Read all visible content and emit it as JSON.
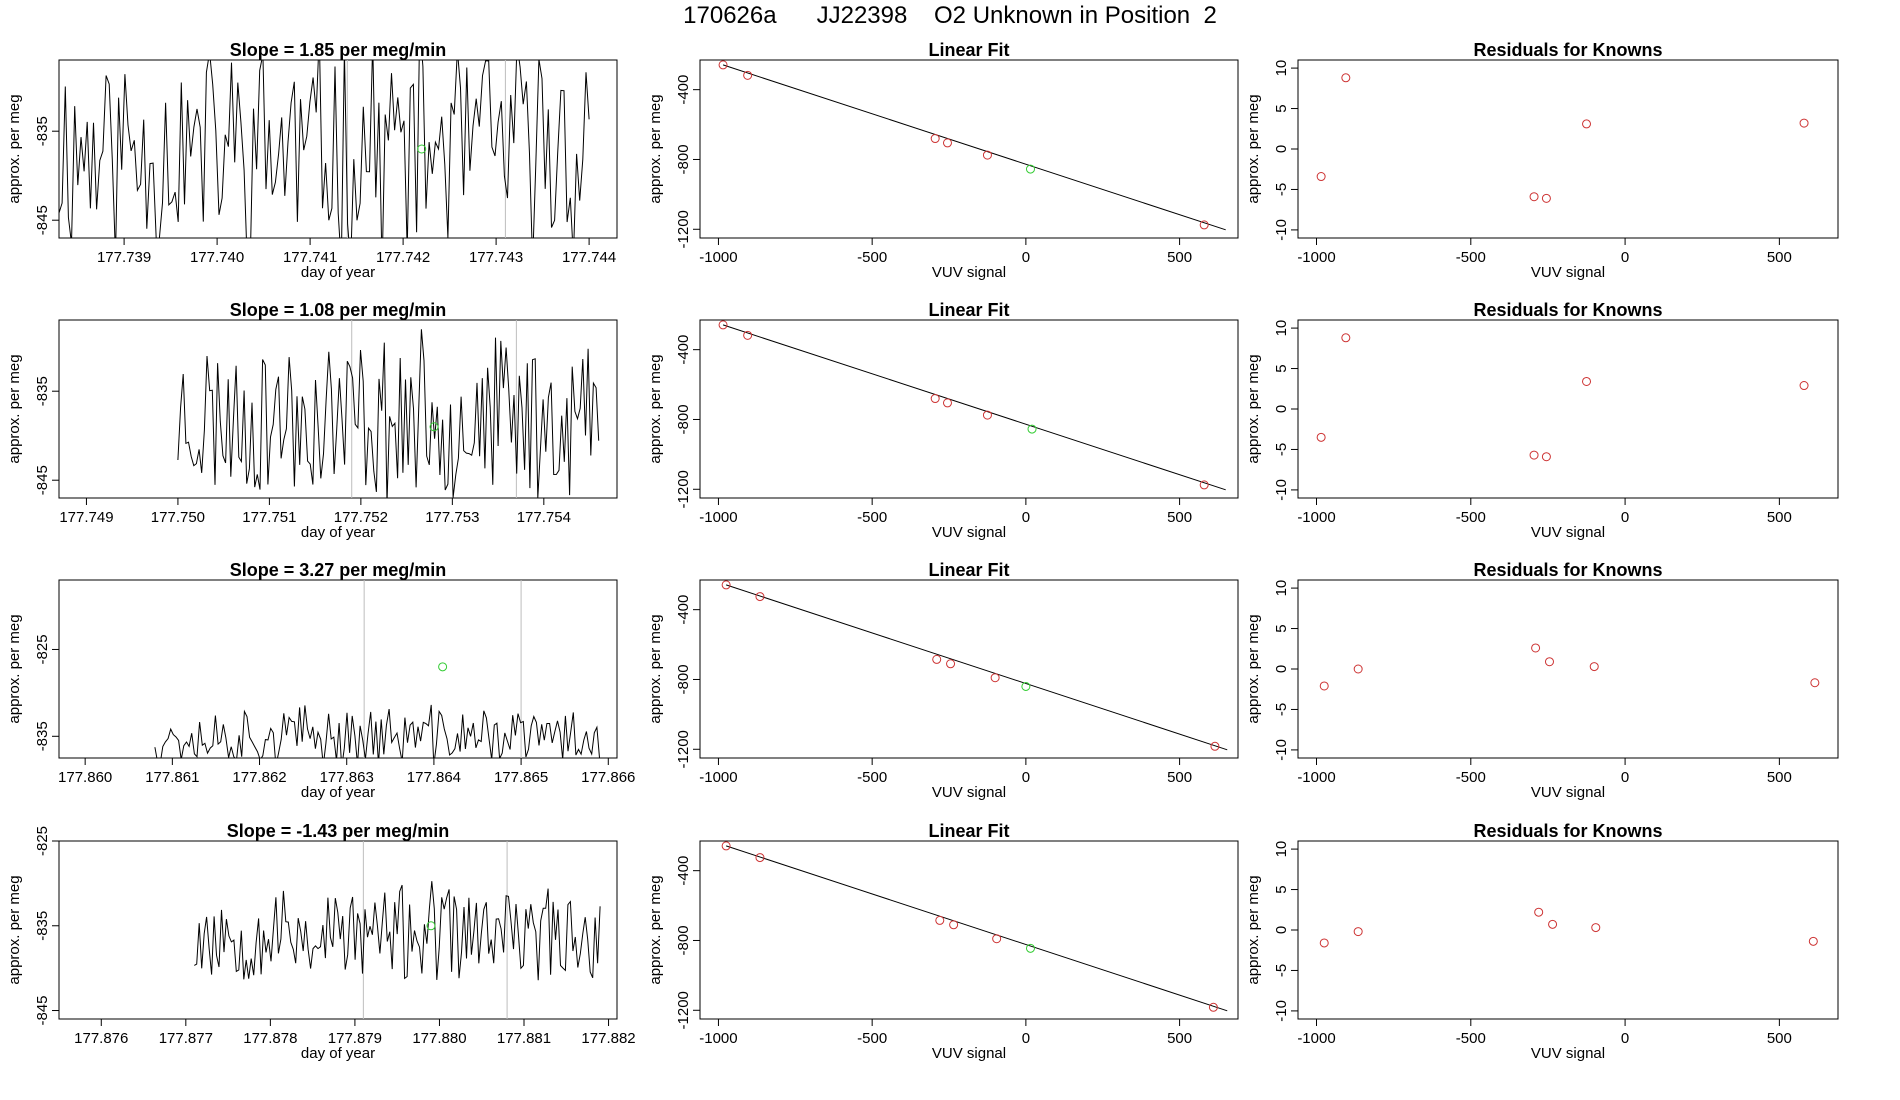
{
  "header": {
    "title": "170626a      JJ22398    O2 Unknown in Position  2"
  },
  "colors": {
    "trace": "#000000",
    "known_points": "#cd3333",
    "unknown_point": "#33cc33",
    "interval_lines": "#bebebe",
    "frame": "#000000"
  },
  "chart_data": [
    {
      "type": "line",
      "row": 0,
      "panel": "timeseries",
      "title": "Slope =  1.85  per meg/min",
      "xlabel": "day of year",
      "ylabel": "approx. per meg",
      "xlim": [
        177.7383,
        177.7443
      ],
      "ylim": [
        -847,
        -827
      ],
      "xticks": [
        177.739,
        177.74,
        177.741,
        177.742,
        177.743,
        177.744
      ],
      "xtick_labels": [
        "177.739",
        "177.740",
        "177.741",
        "177.742",
        "177.743",
        "177.744"
      ],
      "yticks": [
        -835,
        -845
      ],
      "ytick_labels": [
        "-835",
        "-845"
      ],
      "vlines": [
        177.7414,
        177.7431
      ],
      "unknown_point": {
        "x": 177.7422,
        "y": -837
      },
      "x_start": 177.7383,
      "x_end": 177.744,
      "n_points": 170,
      "trace_mean": -837,
      "trace_amplitude": 11,
      "seed": 11
    },
    {
      "type": "scatter",
      "row": 0,
      "panel": "linear_fit",
      "title": "Linear Fit",
      "xlabel": "VUV signal",
      "ylabel": "approx. per meg",
      "xlim": [
        -1060,
        690
      ],
      "ylim": [
        -1250,
        -230
      ],
      "xticks": [
        -1000,
        -500,
        0,
        500
      ],
      "xtick_labels": [
        "-1000",
        "-500",
        "0",
        "500"
      ],
      "yticks": [
        -400,
        -800,
        -1200
      ],
      "ytick_labels": [
        "-400",
        "-800",
        "-1200"
      ],
      "fit_line": {
        "x": [
          -985,
          650
        ],
        "y": [
          -258,
          -1203
        ]
      },
      "knowns": {
        "x": [
          -985,
          -905,
          -295,
          -255,
          -125,
          580
        ],
        "y": [
          -258,
          -318,
          -680,
          -705,
          -775,
          -1175
        ]
      },
      "unknown": {
        "x": 15,
        "y": -855
      }
    },
    {
      "type": "scatter",
      "row": 0,
      "panel": "residuals",
      "title": "Residuals for Knowns",
      "xlabel": "VUV signal",
      "ylabel": "approx. per meg",
      "xlim": [
        -1060,
        690
      ],
      "ylim": [
        -11,
        11
      ],
      "xticks": [
        -1000,
        -500,
        0,
        500
      ],
      "xtick_labels": [
        "-1000",
        "-500",
        "0",
        "500"
      ],
      "yticks": [
        10,
        5,
        0,
        -5,
        -10
      ],
      "ytick_labels": [
        "10",
        "5",
        "0",
        "-5",
        "-10"
      ],
      "points": {
        "x": [
          -985,
          -905,
          -295,
          -255,
          -125,
          580
        ],
        "y": [
          -3.4,
          8.8,
          -5.9,
          -6.1,
          3.1,
          3.2
        ]
      }
    },
    {
      "type": "line",
      "row": 1,
      "panel": "timeseries",
      "title": "Slope =  1.08  per meg/min",
      "xlabel": "day of year",
      "ylabel": "approx. per meg",
      "xlim": [
        177.7487,
        177.7548
      ],
      "ylim": [
        -847,
        -827
      ],
      "xticks": [
        177.749,
        177.75,
        177.751,
        177.752,
        177.753,
        177.754
      ],
      "xtick_labels": [
        "177.749",
        "177.750",
        "177.751",
        "177.752",
        "177.753",
        "177.754"
      ],
      "yticks": [
        -835,
        -845
      ],
      "ytick_labels": [
        "-835",
        "-845"
      ],
      "vlines": [
        177.7519,
        177.7537
      ],
      "unknown_point": {
        "x": 177.7528,
        "y": -839
      },
      "x_start": 177.75,
      "x_end": 177.7546,
      "n_points": 160,
      "trace_mean": -838,
      "trace_amplitude": 8,
      "seed": 23
    },
    {
      "type": "scatter",
      "row": 1,
      "panel": "linear_fit",
      "title": "Linear Fit",
      "xlabel": "VUV signal",
      "ylabel": "approx. per meg",
      "xlim": [
        -1060,
        690
      ],
      "ylim": [
        -1250,
        -230
      ],
      "xticks": [
        -1000,
        -500,
        0,
        500
      ],
      "xtick_labels": [
        "-1000",
        "-500",
        "0",
        "500"
      ],
      "yticks": [
        -400,
        -800,
        -1200
      ],
      "ytick_labels": [
        "-400",
        "-800",
        "-1200"
      ],
      "fit_line": {
        "x": [
          -985,
          650
        ],
        "y": [
          -258,
          -1203
        ]
      },
      "knowns": {
        "x": [
          -985,
          -905,
          -295,
          -255,
          -125,
          580
        ],
        "y": [
          -258,
          -318,
          -680,
          -705,
          -775,
          -1175
        ]
      },
      "unknown": {
        "x": 20,
        "y": -855
      }
    },
    {
      "type": "scatter",
      "row": 1,
      "panel": "residuals",
      "title": "Residuals for Knowns",
      "xlabel": "VUV signal",
      "ylabel": "approx. per meg",
      "xlim": [
        -1060,
        690
      ],
      "ylim": [
        -11,
        11
      ],
      "xticks": [
        -1000,
        -500,
        0,
        500
      ],
      "xtick_labels": [
        "-1000",
        "-500",
        "0",
        "500"
      ],
      "yticks": [
        10,
        5,
        0,
        -5,
        -10
      ],
      "ytick_labels": [
        "10",
        "5",
        "0",
        "-5",
        "-10"
      ],
      "points": {
        "x": [
          -985,
          -905,
          -295,
          -255,
          -125,
          580
        ],
        "y": [
          -3.5,
          8.8,
          -5.7,
          -5.9,
          3.4,
          2.9
        ]
      }
    },
    {
      "type": "line",
      "row": 2,
      "panel": "timeseries",
      "title": "Slope =  3.27  per meg/min",
      "xlabel": "day of year",
      "ylabel": "approx. per meg",
      "xlim": [
        177.8597,
        177.8661
      ],
      "ylim": [
        -837.5,
        -817
      ],
      "xticks": [
        177.86,
        177.861,
        177.862,
        177.863,
        177.864,
        177.865,
        177.866
      ],
      "xtick_labels": [
        "177.860",
        "177.861",
        "177.862",
        "177.863",
        "177.864",
        "177.865",
        "177.866"
      ],
      "yticks": [
        -825,
        -835
      ],
      "ytick_labels": [
        "-825",
        "-835"
      ],
      "vlines": [
        177.8632,
        177.865
      ],
      "unknown_point": {
        "x": 177.8641,
        "y": -827
      },
      "x_start": 177.8608,
      "x_end": 177.8659,
      "n_points": 170,
      "trace_mean": -835,
      "trace_amplitude": 3,
      "seed": 37
    },
    {
      "type": "scatter",
      "row": 2,
      "panel": "linear_fit",
      "title": "Linear Fit",
      "xlabel": "VUV signal",
      "ylabel": "approx. per meg",
      "xlim": [
        -1060,
        690
      ],
      "ylim": [
        -1250,
        -230
      ],
      "xticks": [
        -1000,
        -500,
        0,
        500
      ],
      "xtick_labels": [
        "-1000",
        "-500",
        "0",
        "500"
      ],
      "yticks": [
        -400,
        -800,
        -1200
      ],
      "ytick_labels": [
        "-400",
        "-800",
        "-1200"
      ],
      "fit_line": {
        "x": [
          -975,
          655
        ],
        "y": [
          -258,
          -1203
        ]
      },
      "knowns": {
        "x": [
          -975,
          -865,
          -290,
          -245,
          -100,
          615
        ],
        "y": [
          -258,
          -325,
          -685,
          -710,
          -790,
          -1183
        ]
      },
      "unknown": {
        "x": 0,
        "y": -840
      }
    },
    {
      "type": "scatter",
      "row": 2,
      "panel": "residuals",
      "title": "Residuals for Knowns",
      "xlabel": "VUV signal",
      "ylabel": "approx. per meg",
      "xlim": [
        -1060,
        690
      ],
      "ylim": [
        -11,
        11
      ],
      "xticks": [
        -1000,
        -500,
        0,
        500
      ],
      "xtick_labels": [
        "-1000",
        "-500",
        "0",
        "500"
      ],
      "yticks": [
        10,
        5,
        0,
        -5,
        -10
      ],
      "ytick_labels": [
        "10",
        "5",
        "0",
        "-5",
        "-10"
      ],
      "points": {
        "x": [
          -975,
          -865,
          -290,
          -245,
          -100,
          615
        ],
        "y": [
          -2.1,
          0.0,
          2.6,
          0.9,
          0.3,
          -1.7
        ]
      }
    },
    {
      "type": "line",
      "row": 3,
      "panel": "timeseries",
      "title": "Slope =  -1.43  per meg/min",
      "xlabel": "day of year",
      "ylabel": "approx. per meg",
      "xlim": [
        177.8755,
        177.8821
      ],
      "ylim": [
        -846,
        -825
      ],
      "xticks": [
        177.876,
        177.877,
        177.878,
        177.879,
        177.88,
        177.881,
        177.882
      ],
      "xtick_labels": [
        "177.876",
        "177.877",
        "177.878",
        "177.879",
        "177.880",
        "177.881",
        "177.882"
      ],
      "yticks": [
        -825,
        -835,
        -845
      ],
      "ytick_labels": [
        "-825",
        "-835",
        "-845"
      ],
      "vlines": [
        177.8791,
        177.8808
      ],
      "unknown_point": {
        "x": 177.8799,
        "y": -835
      },
      "x_start": 177.8771,
      "x_end": 177.8819,
      "n_points": 165,
      "trace_mean": -836,
      "trace_amplitude": 5,
      "seed": 53
    },
    {
      "type": "scatter",
      "row": 3,
      "panel": "linear_fit",
      "title": "Linear Fit",
      "xlabel": "VUV signal",
      "ylabel": "approx. per meg",
      "xlim": [
        -1060,
        690
      ],
      "ylim": [
        -1250,
        -230
      ],
      "xticks": [
        -1000,
        -500,
        0,
        500
      ],
      "xtick_labels": [
        "-1000",
        "-500",
        "0",
        "500"
      ],
      "yticks": [
        -400,
        -800,
        -1200
      ],
      "ytick_labels": [
        "-400",
        "-800",
        "-1200"
      ],
      "fit_line": {
        "x": [
          -975,
          655
        ],
        "y": [
          -258,
          -1203
        ]
      },
      "knowns": {
        "x": [
          -975,
          -865,
          -280,
          -235,
          -95,
          610
        ],
        "y": [
          -258,
          -325,
          -685,
          -710,
          -790,
          -1183
        ]
      },
      "unknown": {
        "x": 15,
        "y": -845
      }
    },
    {
      "type": "scatter",
      "row": 3,
      "panel": "residuals",
      "title": "Residuals for Knowns",
      "xlabel": "VUV signal",
      "ylabel": "approx. per meg",
      "xlim": [
        -1060,
        690
      ],
      "ylim": [
        -11,
        11
      ],
      "xticks": [
        -1000,
        -500,
        0,
        500
      ],
      "xtick_labels": [
        "-1000",
        "-500",
        "0",
        "500"
      ],
      "yticks": [
        10,
        5,
        0,
        -5,
        -10
      ],
      "ytick_labels": [
        "10",
        "5",
        "0",
        "-5",
        "-10"
      ],
      "points": {
        "x": [
          -975,
          -865,
          -280,
          -235,
          -95,
          610
        ],
        "y": [
          -1.6,
          -0.2,
          2.2,
          0.7,
          0.3,
          -1.4
        ]
      }
    }
  ]
}
